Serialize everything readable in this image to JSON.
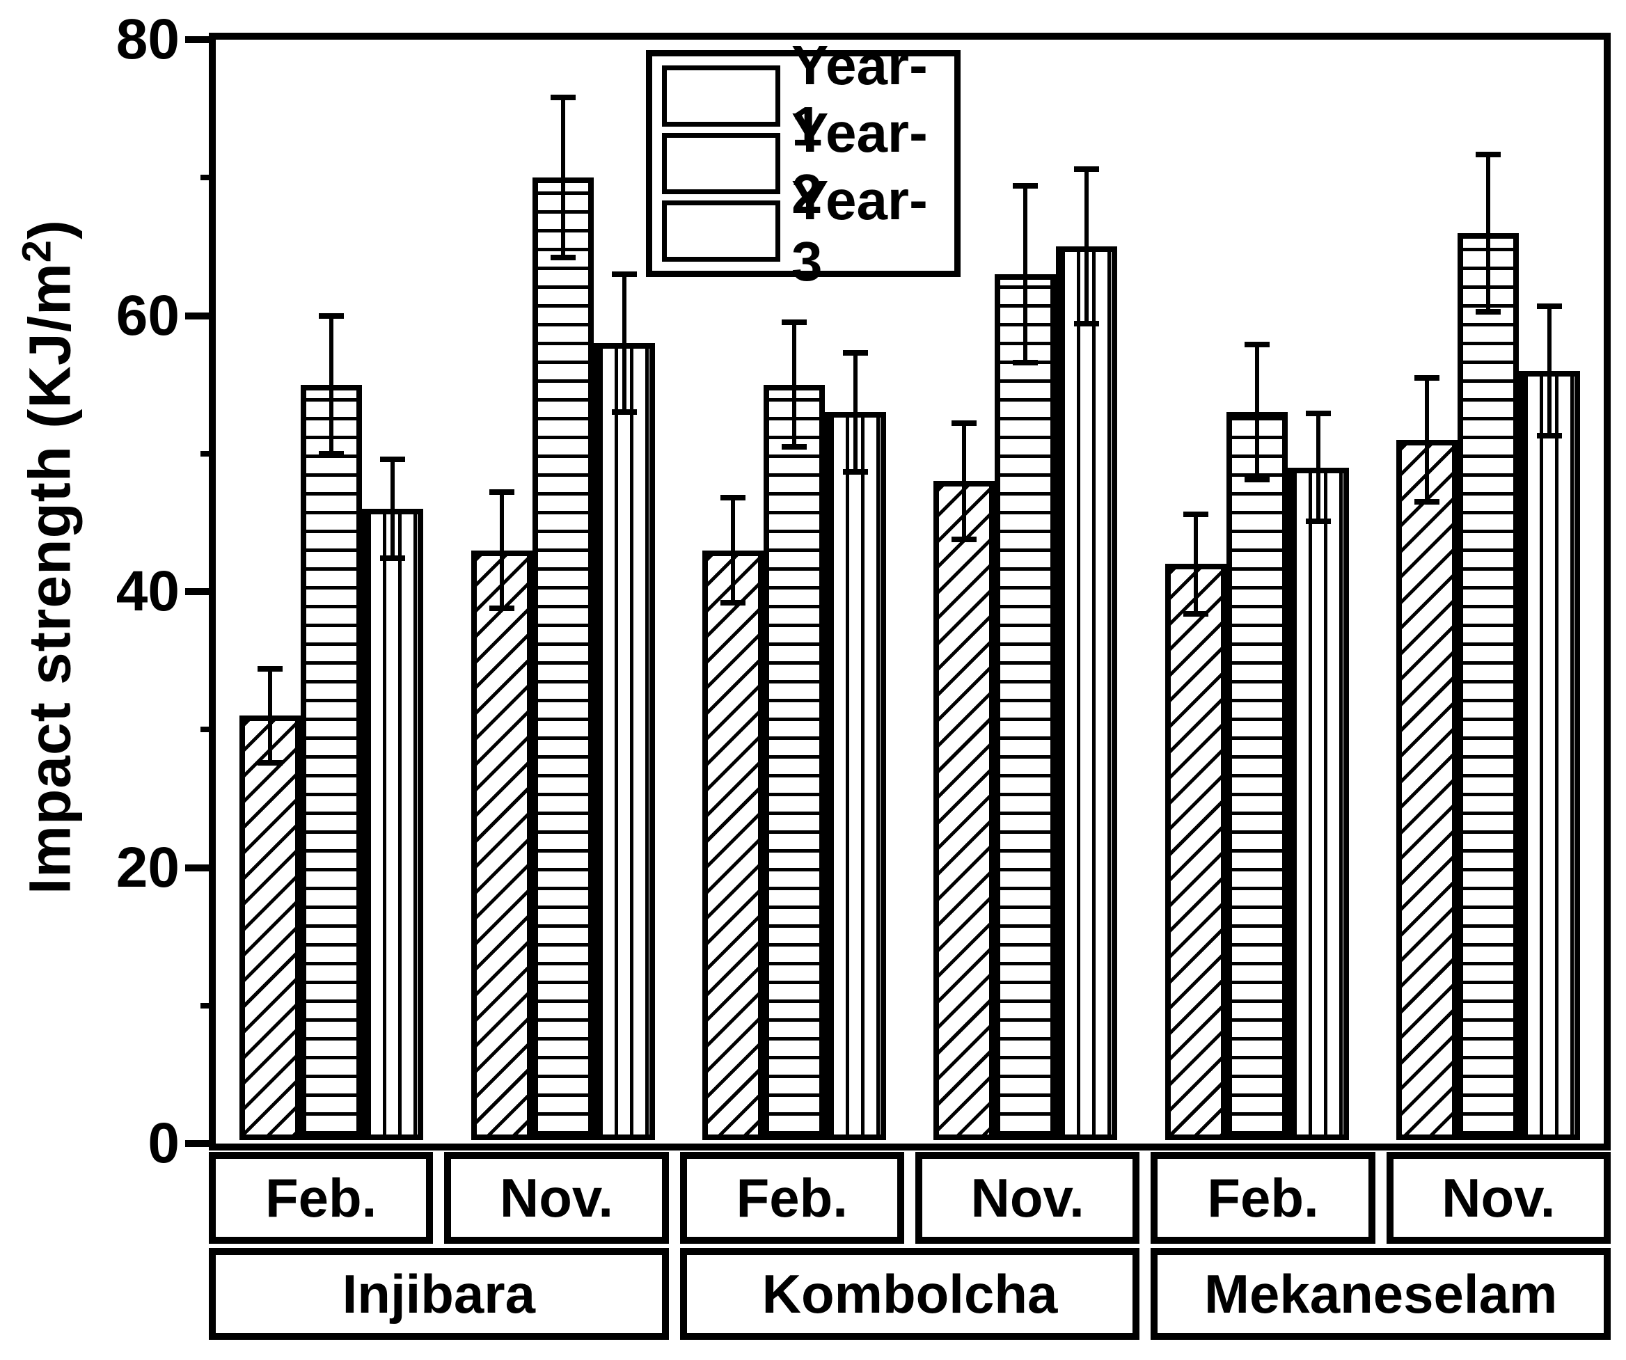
{
  "chart_data": {
    "type": "bar",
    "title": "",
    "ylabel_prefix": "Impact strength (KJ/m",
    "ylabel_sup": "2",
    "ylabel_suffix": ")",
    "ylim": [
      0,
      80
    ],
    "ytick_major": [
      0,
      20,
      40,
      60,
      80
    ],
    "ytick_minor": [
      10,
      30,
      50,
      70
    ],
    "grid": false,
    "legend_position": "top-center-left-inside",
    "group_months": [
      "Feb.",
      "Nov.",
      "Feb.",
      "Nov.",
      "Feb.",
      "Nov."
    ],
    "group_locations": [
      "Injibara",
      "Kombolcha",
      "Mekaneselam"
    ],
    "series": [
      {
        "name": "Year-1",
        "hatch": "diagonal",
        "values": [
          31,
          43,
          43,
          48,
          42,
          51
        ],
        "errors": [
          3.4,
          4.2,
          3.8,
          4.2,
          3.6,
          4.5
        ]
      },
      {
        "name": "Year-2",
        "hatch": "horizontal",
        "values": [
          55,
          70,
          55,
          63,
          53,
          66
        ],
        "errors": [
          5.0,
          5.8,
          4.5,
          6.4,
          4.9,
          5.7
        ]
      },
      {
        "name": "Year-3",
        "hatch": "vertical",
        "values": [
          46,
          58,
          53,
          65,
          49,
          56
        ],
        "errors": [
          3.6,
          5.0,
          4.3,
          5.6,
          3.9,
          4.7
        ]
      }
    ],
    "colors": {
      "foreground": "#000000",
      "background": "#ffffff"
    }
  }
}
